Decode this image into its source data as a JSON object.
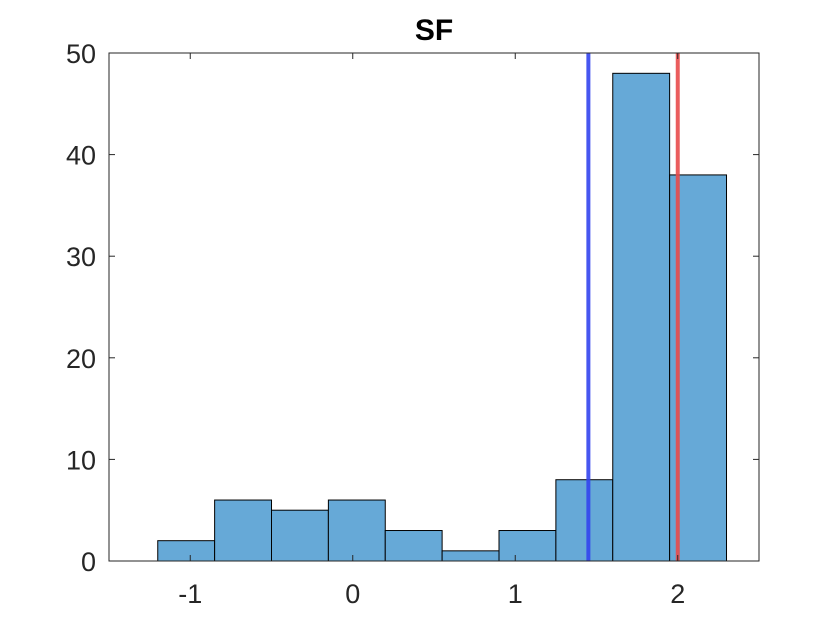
{
  "chart_data": {
    "type": "bar",
    "title": "SF",
    "xlabel": "",
    "ylabel": "",
    "xlim": [
      -1.5,
      2.5
    ],
    "ylim": [
      0,
      50
    ],
    "xticks": [
      -1,
      0,
      1,
      2
    ],
    "yticks": [
      0,
      10,
      20,
      30,
      40,
      50
    ],
    "xtick_labels": [
      "-1",
      "0",
      "1",
      "2"
    ],
    "ytick_labels": [
      "0",
      "10",
      "20",
      "30",
      "40",
      "50"
    ],
    "bin_edges": [
      -1.2,
      -0.85,
      -0.5,
      -0.15,
      0.2,
      0.55,
      0.9,
      1.25,
      1.6,
      1.95,
      2.3
    ],
    "values": [
      2,
      6,
      5,
      6,
      3,
      1,
      3,
      8,
      48,
      38
    ],
    "bar_color": "#66A9D7",
    "bar_edge_color": "#000000",
    "grid": false,
    "reference_lines": [
      {
        "x": 1.45,
        "color": "#3344EE"
      },
      {
        "x": 2.0,
        "color": "#E84B4B"
      }
    ]
  }
}
